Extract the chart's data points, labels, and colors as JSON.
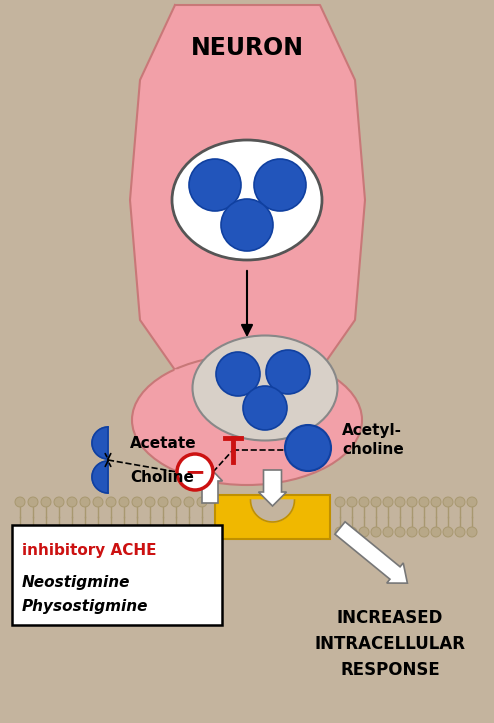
{
  "bg_color": "#C4B49E",
  "neuron_color": "#F2A0A8",
  "neuron_edge": "#C87878",
  "blue_color": "#2255BB",
  "blue_edge": "#1040A0",
  "vesicle_bg": "#D8D0C8",
  "receptor_color": "#F0B800",
  "receptor_edge": "#C09000",
  "white": "#FFFFFF",
  "red_color": "#CC1111",
  "black": "#111111",
  "membrane_head": "#B8A888",
  "membrane_tail": "#A89870",
  "title": "NEURON",
  "label_acetate": "Acetate",
  "label_choline": "Choline",
  "label_acetylcholine": "Acetyl-\ncholine",
  "label_inhibitory": "inhibitory ACHE",
  "label_drug1": "Neostigmine",
  "label_drug2": "Physostigmine",
  "label_response_1": "INCREASED",
  "label_response_2": "INTRACELLULAR",
  "label_response_3": "RESPONSE"
}
